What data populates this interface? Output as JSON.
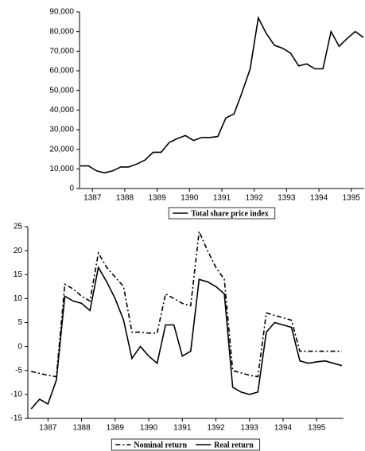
{
  "chart_data": [
    {
      "type": "line",
      "x": [
        1386.625,
        1386.875,
        1387.125,
        1387.375,
        1387.625,
        1387.875,
        1388.125,
        1388.375,
        1388.625,
        1388.875,
        1389.125,
        1389.375,
        1389.625,
        1389.875,
        1390.125,
        1390.375,
        1390.625,
        1390.875,
        1391.125,
        1391.375,
        1391.625,
        1391.875,
        1392.125,
        1392.375,
        1392.625,
        1392.875,
        1393.125,
        1393.375,
        1393.625,
        1393.875,
        1394.125,
        1394.375,
        1394.625,
        1394.875,
        1395.125,
        1395.375
      ],
      "series": [
        {
          "name": "Total share price index",
          "color": "#000000",
          "line_style": "solid",
          "values": [
            11500,
            11500,
            9000,
            8000,
            9000,
            11000,
            11000,
            12500,
            14500,
            18500,
            18500,
            23500,
            25500,
            27000,
            24500,
            26000,
            26000,
            26500,
            36000,
            38000,
            49000,
            61000,
            87000,
            79000,
            73000,
            71500,
            69000,
            62500,
            63500,
            61000,
            61000,
            80000,
            72500,
            76500,
            80000,
            77000
          ]
        }
      ],
      "xlim": [
        1386.6,
        1395.4
      ],
      "xticks": [
        1387,
        1388,
        1389,
        1390,
        1391,
        1392,
        1393,
        1394,
        1395
      ],
      "ylim": [
        0,
        90000
      ],
      "yticks": [
        0,
        {
          "value": 10000,
          "label": "10,000"
        },
        {
          "value": 20000,
          "label": "20,000"
        },
        {
          "value": 30000,
          "label": "30,000"
        },
        {
          "value": 40000,
          "label": "40,000"
        },
        {
          "value": 50000,
          "label": "50,000"
        },
        {
          "value": 60000,
          "label": "60,000"
        },
        {
          "value": 70000,
          "label": "70,000"
        },
        {
          "value": 80000,
          "label": "80,000"
        },
        {
          "value": 90000,
          "label": "90,000"
        }
      ],
      "grid": false,
      "legend": "bottom"
    },
    {
      "type": "line",
      "x": [
        1386.5,
        1386.75,
        1387,
        1387.25,
        1387.5,
        1387.75,
        1388,
        1388.25,
        1388.5,
        1388.75,
        1389,
        1389.25,
        1389.5,
        1389.75,
        1390,
        1390.25,
        1390.5,
        1390.75,
        1391,
        1391.25,
        1391.5,
        1391.75,
        1392,
        1392.25,
        1392.5,
        1392.75,
        1393,
        1393.25,
        1393.5,
        1393.75,
        1394,
        1394.25,
        1394.5,
        1394.75,
        1395,
        1395.25,
        1395.5,
        1395.75
      ],
      "series": [
        {
          "name": "Nominal return",
          "color": "#000000",
          "line_style": "dashed",
          "values": [
            -5.2,
            -5.6,
            -6,
            -6.3,
            13,
            12,
            10.5,
            9.5,
            19.5,
            16.5,
            14.5,
            12.5,
            3,
            3,
            2.8,
            2.8,
            11,
            10,
            9,
            8.5,
            24,
            20,
            16.5,
            14,
            -5,
            -5.5,
            -6,
            -6.3,
            7,
            6.5,
            6,
            5.5,
            -1,
            -1,
            -1,
            -1,
            -1,
            -1
          ]
        },
        {
          "name": "Real return",
          "color": "#000000",
          "line_style": "solid",
          "values": [
            -13,
            -11,
            -12,
            -7,
            10.5,
            9.5,
            9,
            7.5,
            16.5,
            13.5,
            10,
            5.5,
            -2.5,
            0,
            -2,
            -3.5,
            4.5,
            4.5,
            -2,
            -1,
            14,
            13.5,
            12.5,
            11,
            -8.5,
            -9.5,
            -10,
            -9.5,
            3,
            5,
            4.5,
            4,
            -3,
            -3.5,
            -3.2,
            -3,
            -3.5,
            -4
          ]
        }
      ],
      "xlim": [
        1386.4,
        1395.8
      ],
      "xticks": [
        1387,
        1388,
        1389,
        1390,
        1391,
        1392,
        1393,
        1394,
        1395
      ],
      "ylim": [
        -15,
        25
      ],
      "yticks": [
        -15,
        -10,
        -5,
        0,
        5,
        10,
        15,
        20,
        25
      ],
      "grid": false,
      "legend": "bottom"
    }
  ]
}
